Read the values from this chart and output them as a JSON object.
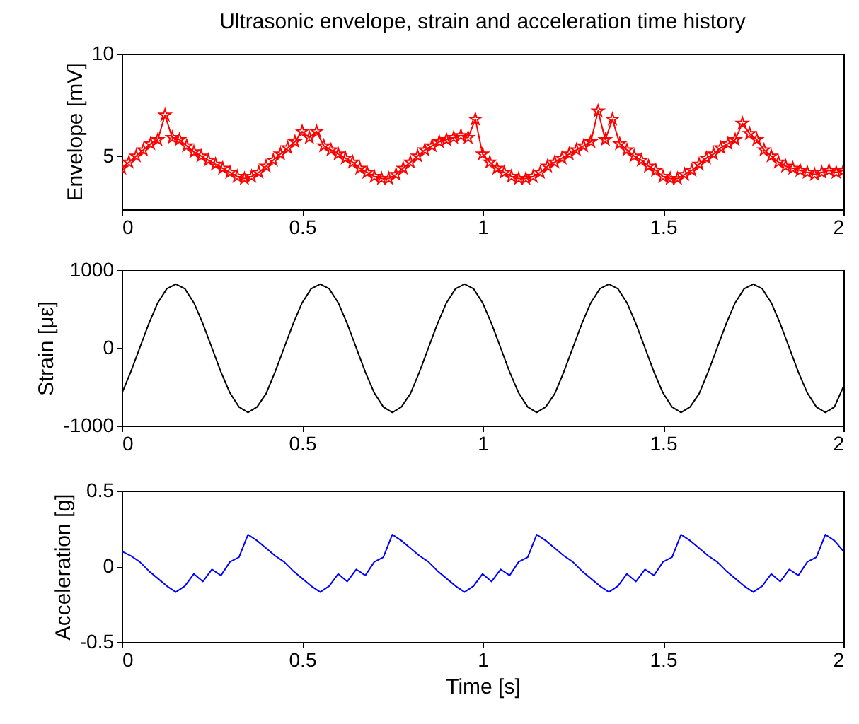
{
  "chart_data": [
    {
      "type": "line",
      "title": "Ultrasonic envelope, strain and acceleration time history",
      "ylabel": "Envelope [mV]",
      "marker": "star",
      "xlim": [
        0,
        2
      ],
      "xticks": [
        0,
        0.5,
        1,
        1.5,
        2
      ],
      "ylim": [
        2.4,
        10
      ],
      "yticks": [
        5,
        10
      ],
      "x": [
        0,
        0.02,
        0.04,
        0.06,
        0.08,
        0.1,
        0.12,
        0.14,
        0.16,
        0.18,
        0.2,
        0.22,
        0.24,
        0.26,
        0.28,
        0.3,
        0.32,
        0.34,
        0.36,
        0.38,
        0.4,
        0.42,
        0.44,
        0.46,
        0.48,
        0.5,
        0.52,
        0.54,
        0.56,
        0.58,
        0.6,
        0.62,
        0.64,
        0.66,
        0.68,
        0.7,
        0.72,
        0.74,
        0.76,
        0.78,
        0.8,
        0.82,
        0.84,
        0.86,
        0.88,
        0.9,
        0.92,
        0.94,
        0.96,
        0.98,
        1,
        1.02,
        1.04,
        1.06,
        1.08,
        1.1,
        1.12,
        1.14,
        1.16,
        1.18,
        1.2,
        1.22,
        1.24,
        1.26,
        1.28,
        1.3,
        1.32,
        1.34,
        1.36,
        1.38,
        1.4,
        1.42,
        1.44,
        1.46,
        1.48,
        1.5,
        1.52,
        1.54,
        1.56,
        1.58,
        1.6,
        1.62,
        1.64,
        1.66,
        1.68,
        1.7,
        1.72,
        1.74,
        1.76,
        1.78,
        1.8,
        1.82,
        1.84,
        1.86,
        1.88,
        1.9,
        1.92,
        1.94,
        1.96,
        1.98,
        2
      ],
      "series": [
        {
          "color": "#ff0000",
          "values": [
            4.4,
            4.7,
            5.0,
            5.3,
            5.6,
            5.8,
            7.0,
            5.9,
            5.8,
            5.5,
            5.2,
            5.0,
            4.8,
            4.6,
            4.4,
            4.2,
            4.0,
            3.9,
            4.0,
            4.2,
            4.5,
            4.8,
            5.1,
            5.4,
            5.7,
            6.2,
            5.9,
            6.2,
            5.5,
            5.3,
            5.1,
            4.9,
            4.7,
            4.4,
            4.2,
            4.0,
            3.9,
            3.9,
            4.1,
            4.4,
            4.7,
            5.0,
            5.3,
            5.5,
            5.7,
            5.8,
            5.9,
            6.0,
            5.9,
            6.8,
            5.1,
            4.7,
            4.4,
            4.2,
            4.0,
            3.9,
            3.9,
            4.0,
            4.2,
            4.5,
            4.7,
            4.9,
            5.1,
            5.3,
            5.5,
            5.7,
            7.2,
            5.8,
            6.8,
            5.6,
            5.3,
            5.0,
            4.8,
            4.5,
            4.3,
            4.0,
            3.9,
            3.9,
            4.1,
            4.3,
            4.6,
            4.9,
            5.1,
            5.4,
            5.6,
            5.8,
            6.6,
            6.1,
            5.8,
            5.3,
            5.0,
            4.7,
            4.5,
            4.4,
            4.3,
            4.2,
            4.1,
            4.2,
            4.3,
            4.2,
            4.3
          ]
        }
      ]
    },
    {
      "type": "line",
      "ylabel": "Strain [με]",
      "marker": "none",
      "xlim": [
        0,
        2
      ],
      "xticks": [
        0,
        0.5,
        1,
        1.5,
        2
      ],
      "ylim": [
        -1000,
        1000
      ],
      "yticks": [
        -1000,
        0,
        1000
      ],
      "x": [
        0,
        0.025,
        0.05,
        0.075,
        0.1,
        0.125,
        0.15,
        0.175,
        0.2,
        0.225,
        0.25,
        0.275,
        0.3,
        0.325,
        0.35,
        0.375,
        0.4,
        0.425,
        0.45,
        0.475,
        0.5,
        0.525,
        0.55,
        0.575,
        0.6,
        0.625,
        0.65,
        0.675,
        0.7,
        0.725,
        0.75,
        0.775,
        0.8,
        0.825,
        0.85,
        0.875,
        0.9,
        0.925,
        0.95,
        0.975,
        1,
        1.025,
        1.05,
        1.075,
        1.1,
        1.125,
        1.15,
        1.175,
        1.2,
        1.225,
        1.25,
        1.275,
        1.3,
        1.325,
        1.35,
        1.375,
        1.4,
        1.425,
        1.45,
        1.475,
        1.5,
        1.525,
        1.55,
        1.575,
        1.6,
        1.625,
        1.65,
        1.675,
        1.7,
        1.725,
        1.75,
        1.775,
        1.8,
        1.825,
        1.85,
        1.875,
        1.9,
        1.925,
        1.95,
        1.975,
        2
      ],
      "series": [
        {
          "color": "#000000",
          "values": [
            -590,
            -310,
            0,
            310,
            580,
            760,
            820,
            760,
            580,
            310,
            0,
            -310,
            -580,
            -760,
            -830,
            -760,
            -590,
            -310,
            0,
            310,
            580,
            760,
            820,
            760,
            580,
            310,
            0,
            -310,
            -580,
            -760,
            -830,
            -760,
            -590,
            -310,
            0,
            310,
            580,
            760,
            820,
            760,
            580,
            310,
            0,
            -310,
            -580,
            -760,
            -830,
            -760,
            -590,
            -310,
            0,
            310,
            580,
            760,
            820,
            760,
            580,
            310,
            0,
            -310,
            -580,
            -760,
            -830,
            -760,
            -590,
            -310,
            0,
            310,
            580,
            760,
            820,
            760,
            580,
            310,
            0,
            -310,
            -580,
            -760,
            -830,
            -760,
            -500
          ]
        }
      ]
    },
    {
      "type": "line",
      "xlabel": "Time [s]",
      "ylabel": "Acceleration [g]",
      "marker": "none",
      "xlim": [
        0,
        2
      ],
      "xticks": [
        0,
        0.5,
        1,
        1.5,
        2
      ],
      "ylim": [
        -0.5,
        0.5
      ],
      "yticks": [
        -0.5,
        0,
        0.5
      ],
      "x": [
        0,
        0.025,
        0.05,
        0.075,
        0.1,
        0.125,
        0.15,
        0.175,
        0.2,
        0.225,
        0.25,
        0.275,
        0.3,
        0.325,
        0.35,
        0.375,
        0.4,
        0.425,
        0.45,
        0.475,
        0.5,
        0.525,
        0.55,
        0.575,
        0.6,
        0.625,
        0.65,
        0.675,
        0.7,
        0.725,
        0.75,
        0.775,
        0.8,
        0.825,
        0.85,
        0.875,
        0.9,
        0.925,
        0.95,
        0.975,
        1,
        1.025,
        1.05,
        1.075,
        1.1,
        1.125,
        1.15,
        1.175,
        1.2,
        1.225,
        1.25,
        1.275,
        1.3,
        1.325,
        1.35,
        1.375,
        1.4,
        1.425,
        1.45,
        1.475,
        1.5,
        1.525,
        1.55,
        1.575,
        1.6,
        1.625,
        1.65,
        1.675,
        1.7,
        1.725,
        1.75,
        1.775,
        1.8,
        1.825,
        1.85,
        1.875,
        1.9,
        1.925,
        1.95,
        1.975,
        2
      ],
      "series": [
        {
          "color": "#0000ff",
          "values": [
            0.1,
            0.07,
            0.03,
            -0.03,
            -0.08,
            -0.13,
            -0.17,
            -0.13,
            -0.05,
            -0.1,
            -0.02,
            -0.06,
            0.03,
            0.06,
            0.21,
            0.17,
            0.12,
            0.07,
            0.03,
            -0.03,
            -0.08,
            -0.13,
            -0.17,
            -0.13,
            -0.05,
            -0.1,
            -0.02,
            -0.06,
            0.03,
            0.06,
            0.21,
            0.17,
            0.12,
            0.07,
            0.03,
            -0.03,
            -0.08,
            -0.13,
            -0.17,
            -0.13,
            -0.05,
            -0.1,
            -0.02,
            -0.06,
            0.03,
            0.06,
            0.21,
            0.17,
            0.12,
            0.07,
            0.03,
            -0.03,
            -0.08,
            -0.13,
            -0.17,
            -0.13,
            -0.05,
            -0.1,
            -0.02,
            -0.06,
            0.03,
            0.06,
            0.21,
            0.17,
            0.12,
            0.07,
            0.03,
            -0.03,
            -0.08,
            -0.13,
            -0.17,
            -0.13,
            -0.05,
            -0.1,
            -0.02,
            -0.06,
            0.03,
            0.06,
            0.21,
            0.17,
            0.1
          ]
        }
      ]
    }
  ]
}
